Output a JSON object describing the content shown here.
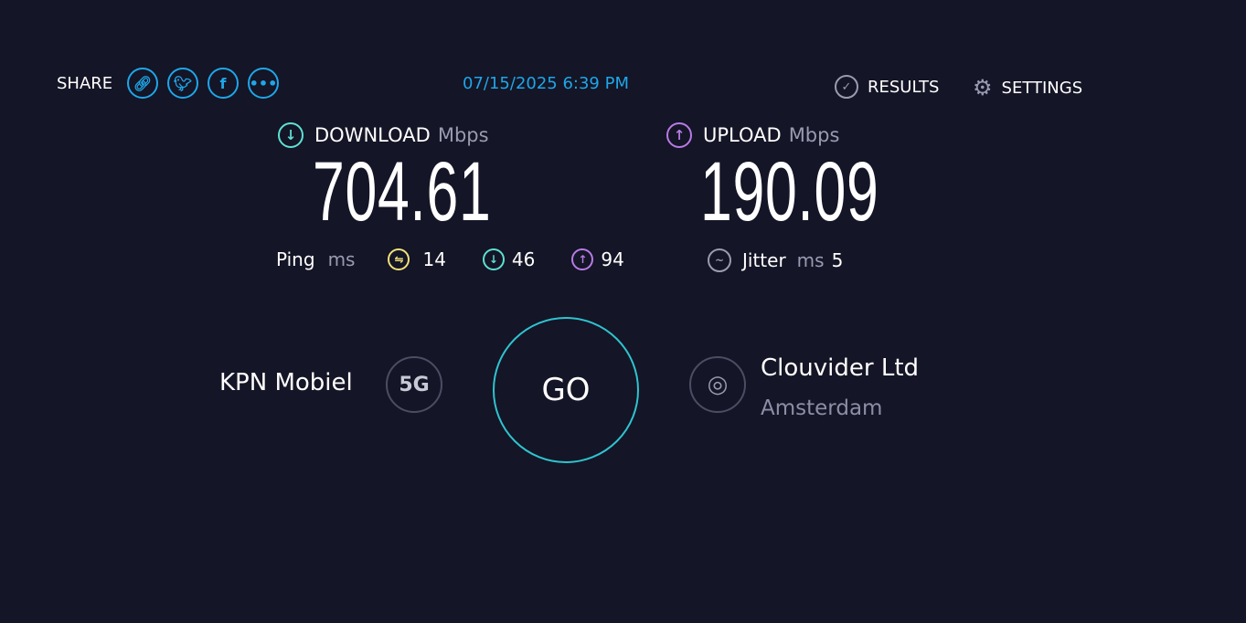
{
  "header": {
    "share_label": "SHARE",
    "share_icons": [
      "link-icon",
      "twitter-icon",
      "facebook-icon",
      "more-icon"
    ],
    "datetime": "07/15/2025 6:39 PM",
    "results_label": "RESULTS",
    "settings_label": "SETTINGS"
  },
  "download": {
    "label": "DOWNLOAD",
    "unit": "Mbps",
    "value": "704.61",
    "color": "#5ee0d4"
  },
  "upload": {
    "label": "UPLOAD",
    "unit": "Mbps",
    "value": "190.09",
    "color": "#b87ae8"
  },
  "ping": {
    "label": "Ping",
    "unit": "ms",
    "idle": "14",
    "download": "46",
    "upload": "94",
    "idle_color": "#f2e27a"
  },
  "jitter": {
    "label": "Jitter",
    "unit": "ms",
    "value": "5"
  },
  "connection": {
    "isp": "KPN Mobiel",
    "type": "5G",
    "go_label": "GO",
    "server": "Clouvider Ltd",
    "location": "Amsterdam"
  },
  "colors": {
    "background": "#141526",
    "accent": "#1fa6e8",
    "go_ring": "#2fc3cf"
  }
}
